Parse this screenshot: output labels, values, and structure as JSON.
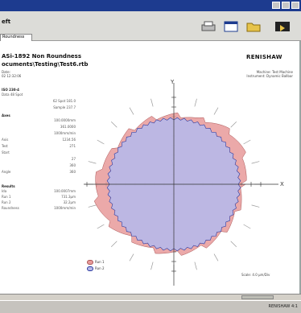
{
  "window": {
    "app_label": "eft"
  },
  "tabs": [
    {
      "label": "Roundness"
    }
  ],
  "report": {
    "title": "ASi-1892 Non Roundness",
    "path": "ocuments\\Testing\\Test6.rtb",
    "date_label": "Date:",
    "timestamp": "02 12:32:06",
    "brand": "RENISHAW",
    "machine": "Machine: Test Machine",
    "instrument": "Instrument: Dynamic Ballbar"
  },
  "stats": {
    "section1": "ISO 230-4",
    "rows1": [
      {
        "label": "Data 48 Spot",
        "value": ""
      },
      {
        "label": "",
        "value": "62 Spot  181.0"
      },
      {
        "label": "",
        "value": "Sample  237.7"
      }
    ],
    "section2": "Axes",
    "rows2": [
      {
        "label": "",
        "value": "100.0000mm"
      },
      {
        "label": "",
        "value": "361.0000"
      },
      {
        "label": "",
        "value": "1000mm/min"
      },
      {
        "label": "Axis",
        "value": "1234.56"
      },
      {
        "label": "Test",
        "value": "271"
      },
      {
        "label": "Start",
        "value": ""
      },
      {
        "label": "",
        "value": "27"
      },
      {
        "label": "",
        "value": "360"
      },
      {
        "label": "Angle",
        "value": "360"
      }
    ],
    "section3": "Results",
    "rows3": [
      {
        "label": "Ida",
        "value": "100.0007mm"
      },
      {
        "label": "Run 1",
        "value": "731.3μm"
      },
      {
        "label": "Run 2",
        "value": "32.2μm"
      },
      {
        "label": "Roundness",
        "value": "1000mm/min"
      }
    ]
  },
  "plot": {
    "axis_x": "X",
    "axis_y": "Y",
    "legend": [
      {
        "label": "Run 1",
        "color": "#e79a9a"
      },
      {
        "label": "Run 2",
        "color": "#b7b9e8"
      }
    ],
    "scale": "Scale: 4.0 μm/Div"
  },
  "colors": {
    "run1": "#e79a9a",
    "run2": "#b7b9e8",
    "outline": "#2c3aa0"
  },
  "taskbar": {
    "tray": "RENISHAW 4:1"
  }
}
